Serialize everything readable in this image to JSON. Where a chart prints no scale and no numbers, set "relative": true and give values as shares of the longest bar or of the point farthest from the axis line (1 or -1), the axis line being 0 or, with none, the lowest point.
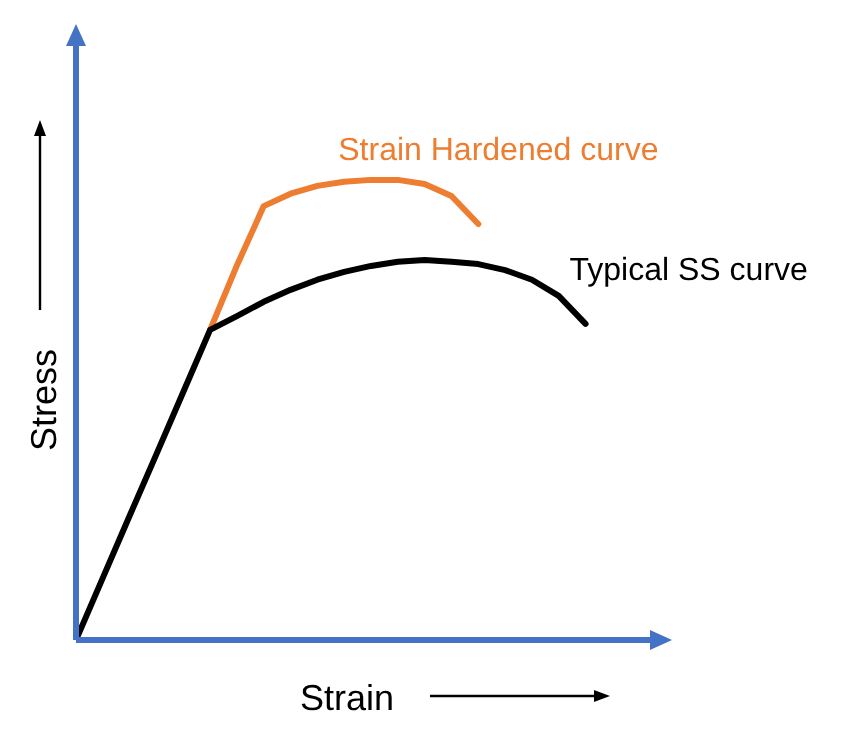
{
  "chart_data": {
    "type": "line",
    "relative": true,
    "xlabel": "Strain",
    "ylabel": "Stress",
    "legend": false,
    "grid": false,
    "marker": "none",
    "line_style": "solid",
    "categories": [
      null,
      null,
      null,
      null,
      null,
      null,
      null,
      null,
      null,
      null,
      null,
      null,
      null,
      null,
      null,
      null,
      null,
      null,
      null,
      null,
      null,
      null,
      null
    ],
    "series": [
      {
        "name": "Strain Hardened curve",
        "color": "#ed7d31",
        "values": [
          null,
          null,
          null,
          null,
          null,
          0.674,
          0.814,
          0.943,
          0.97,
          0.987,
          0.996,
          1,
          1,
          0.991,
          0.965,
          0.904,
          null,
          null,
          null,
          null,
          null,
          null,
          null
        ]
      },
      {
        "name": "Typical SS curve",
        "color": "#000000",
        "values": [
          0,
          0.135,
          0.27,
          0.404,
          0.539,
          0.674,
          0.704,
          0.735,
          0.761,
          0.783,
          0.8,
          0.813,
          0.822,
          0.826,
          0.822,
          0.817,
          0.804,
          0.783,
          0.748,
          0.687,
          null,
          null,
          null
        ]
      }
    ]
  }
}
